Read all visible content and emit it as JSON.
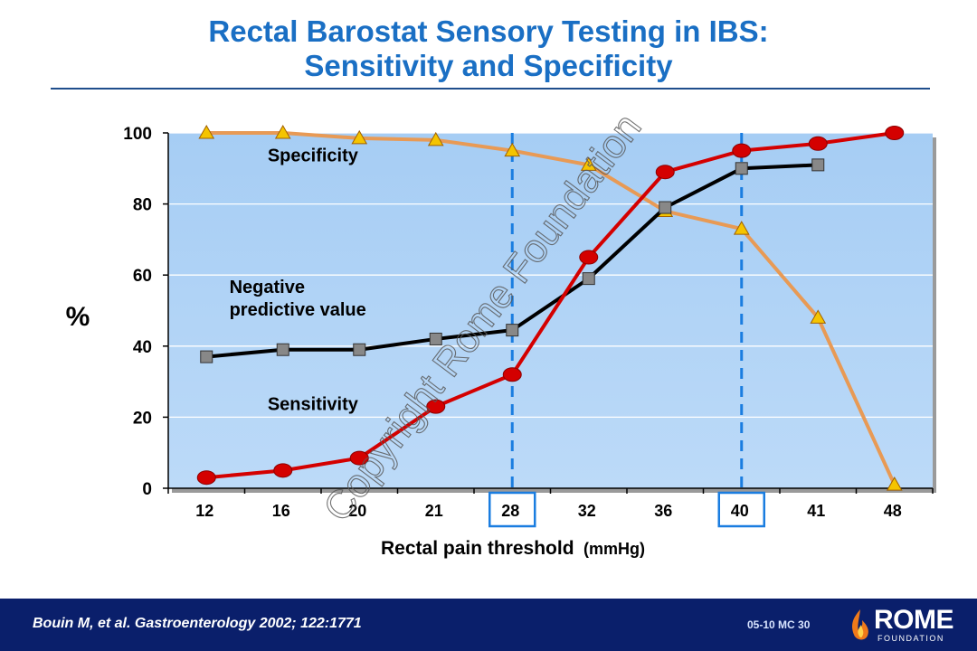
{
  "slide": {
    "title_line1": "Rectal Barostat Sensory Testing in IBS:",
    "title_line2": "Sensitivity and Specificity",
    "watermark": "Copyright Rome Foundation"
  },
  "footer": {
    "citation": "Bouin M, et al. Gastroenterology 2002; 122:1771",
    "slide_code": "05-10  MC 30",
    "logo_name": "ROME",
    "logo_sub": "FOUNDATION"
  },
  "colors": {
    "plot_bg": "#b3d4f5",
    "sensitivity": "#d40000",
    "specificity": "#e89a55",
    "npv": "#000000",
    "title": "#1a6fc4",
    "threshold_line": "#1a7de0",
    "footer_bg": "#0a1f6b"
  },
  "chart_data": {
    "type": "line",
    "ylabel": "%",
    "xlabel": "Rectal pain threshold",
    "xlabel_unit": "(mmHg)",
    "categories": [
      "12",
      "16",
      "20",
      "21",
      "28",
      "32",
      "36",
      "40",
      "41",
      "48"
    ],
    "ylim": [
      0,
      100
    ],
    "yticks": [
      0,
      20,
      40,
      60,
      80,
      100
    ],
    "grid": true,
    "highlighted_categories": [
      "28",
      "40"
    ],
    "series": [
      {
        "name": "Specificity",
        "marker": "triangle",
        "values": [
          100,
          100,
          98.5,
          98,
          95,
          91,
          78,
          73,
          48,
          1
        ],
        "label_position": {
          "category_index": 1.3,
          "value": 92
        }
      },
      {
        "name": "Negative predictive value",
        "label_lines": [
          "Negative",
          "predictive value"
        ],
        "marker": "square",
        "values": [
          37,
          39,
          39,
          42,
          44.5,
          59,
          79,
          90,
          91,
          null
        ],
        "label_position": {
          "category_index": 0.8,
          "value": 55
        }
      },
      {
        "name": "Sensitivity",
        "marker": "circle",
        "values": [
          3,
          5,
          8.5,
          23,
          32,
          65,
          89,
          95,
          97,
          100
        ],
        "label_position": {
          "category_index": 1.3,
          "value": 22
        }
      }
    ]
  }
}
